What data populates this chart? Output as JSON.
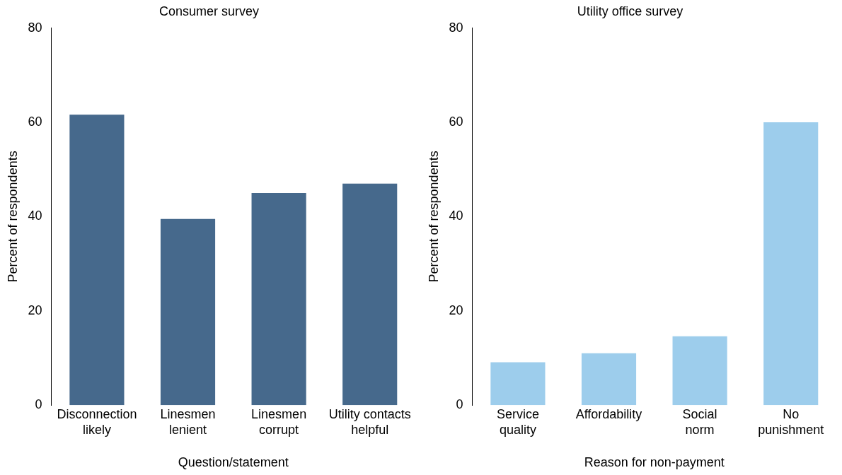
{
  "chart_data": [
    {
      "type": "bar",
      "title": "Consumer survey",
      "xlabel": "Question/statement",
      "ylabel": "Percent of respondents",
      "categories": [
        "Disconnection likely",
        "Linesmen lenient",
        "Linesmen corrupt",
        "Utility contacts helpful"
      ],
      "values": [
        61.6,
        39.5,
        45,
        47
      ],
      "color": "#46698c",
      "ylim": [
        0,
        80
      ],
      "yticks": [
        0,
        20,
        40,
        60,
        80
      ],
      "grid": false
    },
    {
      "type": "bar",
      "title": "Utility office survey",
      "xlabel": "Reason for non-payment",
      "ylabel": "Percent of respondents",
      "categories": [
        "Service quality",
        "Affordability",
        "Social norm",
        "No punishment"
      ],
      "values": [
        9.1,
        11,
        14.6,
        60
      ],
      "color": "#9dcdec",
      "ylim": [
        0,
        80
      ],
      "yticks": [
        0,
        20,
        40,
        60,
        80
      ],
      "grid": false
    }
  ]
}
